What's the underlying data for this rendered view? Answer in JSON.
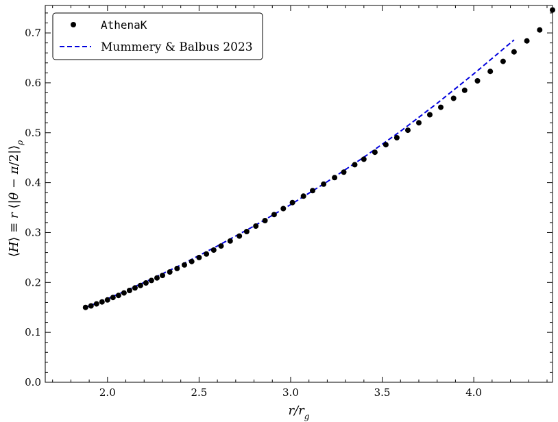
{
  "chart_data": {
    "type": "scatter",
    "xlabel": "r/r_g",
    "ylabel": "⟨H⟩ ≡ r ⟨|θ − π/2|⟩_ρ",
    "xlim": [
      1.66,
      4.43
    ],
    "ylim": [
      0.0,
      0.755
    ],
    "xticks": [
      "2.0",
      "2.5",
      "3.0",
      "3.5",
      "4.0"
    ],
    "yticks": [
      "0.0",
      "0.1",
      "0.2",
      "0.3",
      "0.4",
      "0.5",
      "0.6",
      "0.7"
    ],
    "legend_position": "top-left",
    "series": [
      {
        "name": "AthenaK",
        "kind": "scatter",
        "color": "#000000",
        "x": [
          1.88,
          1.91,
          1.94,
          1.97,
          2.0,
          2.03,
          2.06,
          2.09,
          2.12,
          2.15,
          2.18,
          2.21,
          2.24,
          2.27,
          2.3,
          2.34,
          2.38,
          2.42,
          2.46,
          2.5,
          2.54,
          2.58,
          2.62,
          2.67,
          2.72,
          2.76,
          2.81,
          2.86,
          2.91,
          2.96,
          3.01,
          3.07,
          3.12,
          3.18,
          3.24,
          3.29,
          3.35,
          3.4,
          3.46,
          3.52,
          3.58,
          3.64,
          3.7,
          3.76,
          3.82,
          3.89,
          3.95,
          4.02,
          4.09,
          4.16,
          4.22,
          4.29,
          4.36,
          4.43
        ],
        "y": [
          0.15,
          0.153,
          0.157,
          0.161,
          0.165,
          0.17,
          0.174,
          0.179,
          0.184,
          0.189,
          0.194,
          0.199,
          0.204,
          0.209,
          0.214,
          0.221,
          0.228,
          0.235,
          0.242,
          0.25,
          0.257,
          0.265,
          0.273,
          0.283,
          0.293,
          0.302,
          0.313,
          0.324,
          0.336,
          0.348,
          0.36,
          0.373,
          0.384,
          0.397,
          0.41,
          0.421,
          0.436,
          0.447,
          0.461,
          0.476,
          0.49,
          0.505,
          0.52,
          0.536,
          0.551,
          0.569,
          0.585,
          0.604,
          0.623,
          0.643,
          0.662,
          0.684,
          0.706,
          0.746
        ]
      },
      {
        "name": "Mummery & Balbus 2023",
        "kind": "line",
        "style": "dashed",
        "color": "#0000dd",
        "x": [
          1.88,
          2.0,
          2.2,
          2.4,
          2.6,
          2.8,
          3.0,
          3.2,
          3.4,
          3.6,
          3.8,
          4.0,
          4.22
        ],
        "y": [
          0.15,
          0.167,
          0.2,
          0.235,
          0.273,
          0.313,
          0.356,
          0.402,
          0.451,
          0.503,
          0.559,
          0.618,
          0.686
        ]
      }
    ]
  }
}
